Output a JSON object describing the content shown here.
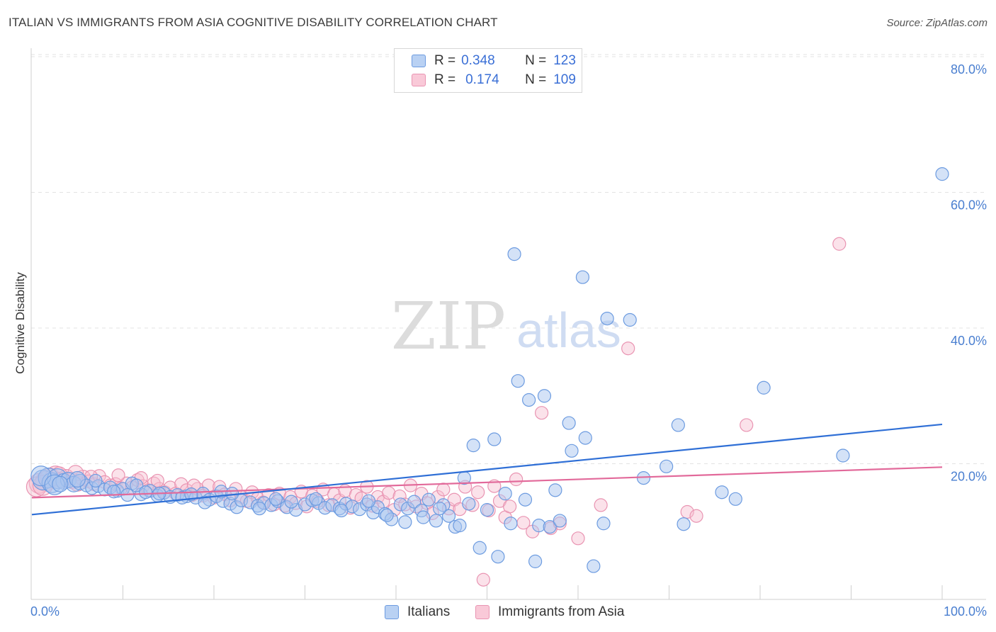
{
  "header": {
    "title": "ITALIAN VS IMMIGRANTS FROM ASIA COGNITIVE DISABILITY CORRELATION CHART",
    "source": "Source: ZipAtlas.com"
  },
  "watermark": {
    "zip": "ZIP",
    "atlas": "atlas"
  },
  "colors": {
    "italians_fill": "#a9c6ef",
    "italians_stroke": "#6c9be0",
    "italians_line": "#2f6fd6",
    "asia_fill": "#f6bfd0",
    "asia_stroke": "#e994b2",
    "asia_line": "#e2699a",
    "tick_label": "#4a7fd0",
    "grid": "#e3e3e3"
  },
  "legend_top": {
    "rows": [
      {
        "r_label": "R =",
        "r_value": "0.348",
        "n_label": "N =",
        "n_value": "123"
      },
      {
        "r_label": "R =",
        "r_value": "0.174",
        "n_label": "N =",
        "n_value": "109"
      }
    ]
  },
  "legend_bottom": {
    "items": [
      "Italians",
      "Immigrants from Asia"
    ]
  },
  "chart_data": {
    "type": "scatter",
    "ylabel": "Cognitive Disability",
    "xlabel": "",
    "xlim": [
      0,
      100
    ],
    "ylim": [
      0,
      80
    ],
    "x_tick_labels": [
      "0.0%",
      "100.0%"
    ],
    "y_ticks": [
      20,
      40,
      60,
      80
    ],
    "y_tick_labels": [
      "20.0%",
      "40.0%",
      "60.0%",
      "80.0%"
    ],
    "grid": "horizontal dashed",
    "legend_position": "top-center",
    "series": [
      {
        "name": "Italians",
        "R": 0.348,
        "N": 123,
        "trend": {
          "x": [
            0,
            100
          ],
          "y": [
            12.5,
            25.8
          ]
        },
        "points": [
          [
            1.2,
            17.6
          ],
          [
            1.8,
            17.9
          ],
          [
            2.2,
            17.2
          ],
          [
            2.8,
            17.8
          ],
          [
            3.5,
            17.4
          ],
          [
            4.0,
            17.6
          ],
          [
            4.6,
            17.0
          ],
          [
            5.3,
            17.3
          ],
          [
            6.0,
            16.8
          ],
          [
            6.6,
            16.4
          ],
          [
            7.3,
            16.7
          ],
          [
            8.0,
            16.2
          ],
          [
            8.6,
            16.5
          ],
          [
            9.4,
            16.0
          ],
          [
            10.0,
            16.3
          ],
          [
            11.0,
            17.1
          ],
          [
            12.0,
            15.5
          ],
          [
            13.0,
            16.0
          ],
          [
            13.8,
            15.3
          ],
          [
            14.5,
            15.7
          ],
          [
            15.2,
            15.1
          ],
          [
            16.0,
            15.4
          ],
          [
            17.0,
            15.2
          ],
          [
            18.0,
            15.0
          ],
          [
            18.8,
            15.6
          ],
          [
            19.5,
            14.7
          ],
          [
            20.3,
            15.2
          ],
          [
            21.0,
            14.5
          ],
          [
            21.8,
            14.1
          ],
          [
            22.5,
            13.6
          ],
          [
            23.0,
            14.6
          ],
          [
            24.0,
            14.3
          ],
          [
            24.8,
            13.8
          ],
          [
            25.5,
            14.2
          ],
          [
            26.3,
            13.9
          ],
          [
            27.0,
            14.5
          ],
          [
            28.0,
            13.6
          ],
          [
            29.0,
            13.2
          ],
          [
            30.0,
            14.0
          ],
          [
            30.8,
            14.6
          ],
          [
            31.5,
            14.2
          ],
          [
            32.2,
            13.5
          ],
          [
            33.0,
            13.9
          ],
          [
            33.8,
            13.4
          ],
          [
            34.5,
            14.1
          ],
          [
            35.2,
            13.7
          ],
          [
            36.0,
            13.3
          ],
          [
            36.8,
            14.0
          ],
          [
            37.5,
            12.8
          ],
          [
            38.0,
            13.6
          ],
          [
            38.8,
            12.6
          ],
          [
            39.5,
            11.8
          ],
          [
            40.5,
            14.0
          ],
          [
            41.3,
            13.4
          ],
          [
            42.0,
            14.4
          ],
          [
            42.8,
            13.1
          ],
          [
            43.6,
            14.7
          ],
          [
            44.4,
            11.6
          ],
          [
            45.2,
            13.9
          ],
          [
            45.8,
            12.3
          ],
          [
            46.5,
            10.7
          ],
          [
            47.0,
            10.9
          ],
          [
            47.5,
            17.9
          ],
          [
            48.0,
            14.1
          ],
          [
            48.5,
            22.7
          ],
          [
            49.2,
            7.6
          ],
          [
            50.0,
            13.2
          ],
          [
            50.8,
            23.6
          ],
          [
            51.2,
            6.3
          ],
          [
            52.0,
            15.6
          ],
          [
            52.6,
            11.2
          ],
          [
            53.0,
            50.9
          ],
          [
            53.4,
            32.2
          ],
          [
            54.2,
            14.7
          ],
          [
            54.6,
            29.4
          ],
          [
            55.3,
            5.6
          ],
          [
            55.7,
            10.9
          ],
          [
            56.3,
            30.0
          ],
          [
            56.9,
            10.7
          ],
          [
            57.5,
            16.1
          ],
          [
            58.0,
            11.6
          ],
          [
            59.0,
            26.0
          ],
          [
            59.3,
            21.9
          ],
          [
            60.5,
            47.5
          ],
          [
            60.8,
            23.8
          ],
          [
            61.7,
            4.9
          ],
          [
            62.8,
            11.2
          ],
          [
            63.2,
            41.4
          ],
          [
            65.7,
            41.2
          ],
          [
            67.2,
            17.9
          ],
          [
            69.7,
            19.6
          ],
          [
            71.0,
            25.7
          ],
          [
            71.6,
            11.1
          ],
          [
            75.8,
            15.8
          ],
          [
            77.3,
            14.8
          ],
          [
            80.4,
            31.2
          ],
          [
            89.1,
            21.2
          ],
          [
            100.0,
            62.7
          ],
          [
            1.0,
            18.2
          ],
          [
            2.5,
            16.9
          ],
          [
            3.1,
            17.0
          ],
          [
            5.0,
            17.7
          ],
          [
            7.0,
            17.5
          ],
          [
            9.0,
            15.9
          ],
          [
            10.5,
            15.4
          ],
          [
            11.5,
            16.8
          ],
          [
            12.5,
            15.8
          ],
          [
            14.0,
            15.6
          ],
          [
            16.5,
            15.0
          ],
          [
            17.5,
            15.5
          ],
          [
            19.0,
            14.3
          ],
          [
            20.8,
            15.9
          ],
          [
            22.0,
            15.6
          ],
          [
            25.0,
            13.4
          ],
          [
            26.8,
            14.8
          ],
          [
            28.5,
            14.4
          ],
          [
            31.2,
            14.8
          ],
          [
            34.0,
            13.1
          ],
          [
            37.0,
            14.5
          ],
          [
            39.0,
            12.4
          ],
          [
            41.0,
            11.4
          ],
          [
            43.0,
            12.1
          ],
          [
            44.8,
            13.4
          ]
        ]
      },
      {
        "name": "Immigrants from Asia",
        "R": 0.174,
        "N": 109,
        "trend": {
          "x": [
            0,
            100
          ],
          "y": [
            15.0,
            19.5
          ]
        },
        "points": [
          [
            0.8,
            17.1
          ],
          [
            1.5,
            17.4
          ],
          [
            2.0,
            17.9
          ],
          [
            2.6,
            18.2
          ],
          [
            3.2,
            17.6
          ],
          [
            3.8,
            18.0
          ],
          [
            4.4,
            17.5
          ],
          [
            5.0,
            17.1
          ],
          [
            5.6,
            17.9
          ],
          [
            6.2,
            17.4
          ],
          [
            6.8,
            17.0
          ],
          [
            7.4,
            18.2
          ],
          [
            8.0,
            17.3
          ],
          [
            8.6,
            16.8
          ],
          [
            9.2,
            17.0
          ],
          [
            9.8,
            16.4
          ],
          [
            10.4,
            17.1
          ],
          [
            11.0,
            16.5
          ],
          [
            11.6,
            17.6
          ],
          [
            12.2,
            16.7
          ],
          [
            12.8,
            16.1
          ],
          [
            13.4,
            17.1
          ],
          [
            14.0,
            16.3
          ],
          [
            14.6,
            15.8
          ],
          [
            15.2,
            16.5
          ],
          [
            15.8,
            15.6
          ],
          [
            16.4,
            17.0
          ],
          [
            17.0,
            16.1
          ],
          [
            17.6,
            15.4
          ],
          [
            18.2,
            16.3
          ],
          [
            18.8,
            15.3
          ],
          [
            19.4,
            16.8
          ],
          [
            20.0,
            15.0
          ],
          [
            20.6,
            16.6
          ],
          [
            21.2,
            15.5
          ],
          [
            21.8,
            14.6
          ],
          [
            22.4,
            16.3
          ],
          [
            23.0,
            15.1
          ],
          [
            23.6,
            14.5
          ],
          [
            24.2,
            15.8
          ],
          [
            24.8,
            14.9
          ],
          [
            25.4,
            14.3
          ],
          [
            26.0,
            15.4
          ],
          [
            26.6,
            14.0
          ],
          [
            27.2,
            15.6
          ],
          [
            27.8,
            13.8
          ],
          [
            28.4,
            15.1
          ],
          [
            29.0,
            14.2
          ],
          [
            29.6,
            15.9
          ],
          [
            30.2,
            13.7
          ],
          [
            30.8,
            15.3
          ],
          [
            31.4,
            14.5
          ],
          [
            32.0,
            16.2
          ],
          [
            32.6,
            13.9
          ],
          [
            33.2,
            15.5
          ],
          [
            33.8,
            14.6
          ],
          [
            34.4,
            16.0
          ],
          [
            35.0,
            13.5
          ],
          [
            35.6,
            15.4
          ],
          [
            36.2,
            14.9
          ],
          [
            36.8,
            16.6
          ],
          [
            37.4,
            13.8
          ],
          [
            38.0,
            15.1
          ],
          [
            38.6,
            14.4
          ],
          [
            39.2,
            15.7
          ],
          [
            39.8,
            13.2
          ],
          [
            40.4,
            15.2
          ],
          [
            41.0,
            14.0
          ],
          [
            41.6,
            16.8
          ],
          [
            42.2,
            13.7
          ],
          [
            42.8,
            15.6
          ],
          [
            43.4,
            14.2
          ],
          [
            44.0,
            12.7
          ],
          [
            44.6,
            15.1
          ],
          [
            45.2,
            16.2
          ],
          [
            45.8,
            13.4
          ],
          [
            46.4,
            14.7
          ],
          [
            47.0,
            13.3
          ],
          [
            47.6,
            16.6
          ],
          [
            48.4,
            13.9
          ],
          [
            49.0,
            15.8
          ],
          [
            49.6,
            2.9
          ],
          [
            50.2,
            13.1
          ],
          [
            50.8,
            16.7
          ],
          [
            51.4,
            14.5
          ],
          [
            52.0,
            12.1
          ],
          [
            52.5,
            13.7
          ],
          [
            53.2,
            17.7
          ],
          [
            54.0,
            11.3
          ],
          [
            55.0,
            10.0
          ],
          [
            56.0,
            27.5
          ],
          [
            57.0,
            10.5
          ],
          [
            58.0,
            11.2
          ],
          [
            60.0,
            9.0
          ],
          [
            62.5,
            13.9
          ],
          [
            65.5,
            37.0
          ],
          [
            72.0,
            12.9
          ],
          [
            73.0,
            12.3
          ],
          [
            78.5,
            25.7
          ],
          [
            88.7,
            52.4
          ],
          [
            0.5,
            16.6
          ],
          [
            1.2,
            16.8
          ],
          [
            3.0,
            18.4
          ],
          [
            4.8,
            18.6
          ],
          [
            6.5,
            18.1
          ],
          [
            9.5,
            18.3
          ],
          [
            12.0,
            17.9
          ],
          [
            13.8,
            17.5
          ],
          [
            17.8,
            16.8
          ]
        ]
      }
    ]
  }
}
